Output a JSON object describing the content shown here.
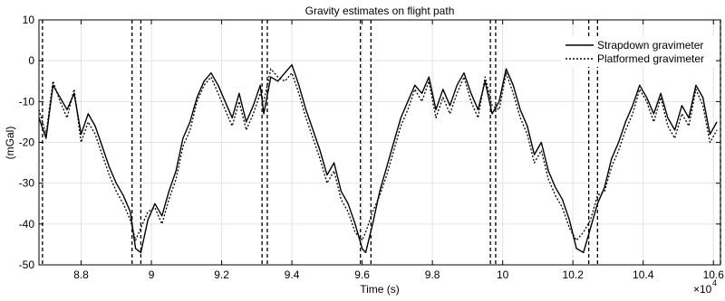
{
  "chart_data": {
    "type": "line",
    "title": "Gravity estimates on flight path",
    "xlabel": "Time (s)",
    "ylabel": "(mGal)",
    "x_exponent_label": "×10",
    "x_exponent_power": "4",
    "xlim": [
      8.68,
      10.62
    ],
    "ylim": [
      -50,
      10
    ],
    "x_ticks": [
      8.8,
      9,
      9.2,
      9.4,
      9.6,
      9.8,
      10,
      10.2,
      10.4,
      10.6
    ],
    "x_tick_labels": [
      "8.8",
      "9",
      "9.2",
      "9.4",
      "9.6",
      "9.8",
      "10",
      "10.2",
      "10.4",
      "10.6"
    ],
    "y_ticks": [
      -50,
      -40,
      -30,
      -20,
      -10,
      0,
      10
    ],
    "y_tick_labels": [
      "-50",
      "-40",
      "-30",
      "-20",
      "-10",
      "0",
      "10"
    ],
    "grid": true,
    "legend_position": "top-right",
    "vertical_markers": [
      8.69,
      8.945,
      8.97,
      9.315,
      9.33,
      9.595,
      9.625,
      9.965,
      9.98,
      10.245,
      10.27,
      10.62
    ],
    "series": [
      {
        "name": "Strapdown gravimeter",
        "style": "solid",
        "x": [
          8.68,
          8.7,
          8.72,
          8.74,
          8.76,
          8.78,
          8.8,
          8.82,
          8.84,
          8.86,
          8.88,
          8.9,
          8.92,
          8.94,
          8.955,
          8.97,
          8.99,
          9.01,
          9.03,
          9.05,
          9.07,
          9.09,
          9.11,
          9.13,
          9.15,
          9.17,
          9.19,
          9.21,
          9.23,
          9.25,
          9.27,
          9.29,
          9.31,
          9.32,
          9.34,
          9.36,
          9.38,
          9.4,
          9.42,
          9.44,
          9.46,
          9.48,
          9.5,
          9.52,
          9.54,
          9.56,
          9.58,
          9.6,
          9.61,
          9.63,
          9.65,
          9.67,
          9.69,
          9.71,
          9.73,
          9.75,
          9.77,
          9.79,
          9.81,
          9.83,
          9.85,
          9.87,
          9.89,
          9.91,
          9.93,
          9.95,
          9.97,
          9.99,
          10.01,
          10.03,
          10.05,
          10.07,
          10.09,
          10.11,
          10.13,
          10.15,
          10.17,
          10.19,
          10.21,
          10.23,
          10.25,
          10.27,
          10.29,
          10.31,
          10.33,
          10.35,
          10.37,
          10.39,
          10.41,
          10.43,
          10.45,
          10.47,
          10.49,
          10.51,
          10.53,
          10.55,
          10.57,
          10.59,
          10.61
        ],
        "y": [
          -14,
          -19,
          -6,
          -9,
          -12,
          -8,
          -18,
          -13,
          -16,
          -21,
          -26,
          -30,
          -33,
          -37,
          -46,
          -47,
          -39,
          -35,
          -38,
          -32,
          -27,
          -19,
          -15,
          -9,
          -5,
          -3,
          -6,
          -10,
          -14,
          -8,
          -15,
          -11,
          -6,
          -13,
          -4,
          -5,
          -3,
          -1,
          -6,
          -12,
          -17,
          -22,
          -28,
          -25,
          -32,
          -35,
          -40,
          -46,
          -47,
          -40,
          -32,
          -26,
          -20,
          -14,
          -10,
          -6,
          -8,
          -4,
          -12,
          -7,
          -11,
          -6,
          -3,
          -8,
          -12,
          -5,
          -13,
          -10,
          -2,
          -6,
          -12,
          -16,
          -23,
          -20,
          -27,
          -31,
          -34,
          -39,
          -46,
          -47,
          -41,
          -35,
          -31,
          -24,
          -20,
          -15,
          -11,
          -6,
          -9,
          -13,
          -8,
          -14,
          -17,
          -11,
          -14,
          -6,
          -9,
          -18,
          -15
        ]
      },
      {
        "name": "Platformed gravimeter",
        "style": "dotted",
        "x": [
          8.68,
          8.7,
          8.72,
          8.74,
          8.76,
          8.78,
          8.8,
          8.82,
          8.84,
          8.86,
          8.88,
          8.9,
          8.92,
          8.94,
          8.955,
          8.97,
          8.99,
          9.01,
          9.03,
          9.05,
          9.07,
          9.09,
          9.11,
          9.13,
          9.15,
          9.17,
          9.19,
          9.21,
          9.23,
          9.25,
          9.27,
          9.29,
          9.31,
          9.32,
          9.34,
          9.36,
          9.38,
          9.4,
          9.42,
          9.44,
          9.46,
          9.48,
          9.5,
          9.52,
          9.54,
          9.56,
          9.58,
          9.6,
          9.61,
          9.63,
          9.65,
          9.67,
          9.69,
          9.71,
          9.73,
          9.75,
          9.77,
          9.79,
          9.81,
          9.83,
          9.85,
          9.87,
          9.89,
          9.91,
          9.93,
          9.95,
          9.97,
          9.99,
          10.01,
          10.03,
          10.05,
          10.07,
          10.09,
          10.11,
          10.13,
          10.15,
          10.17,
          10.19,
          10.21,
          10.23,
          10.25,
          10.27,
          10.29,
          10.31,
          10.33,
          10.35,
          10.37,
          10.39,
          10.41,
          10.43,
          10.45,
          10.47,
          10.49,
          10.51,
          10.53,
          10.55,
          10.57,
          10.59,
          10.61
        ],
        "y": [
          -12,
          -18,
          -5,
          -10,
          -14,
          -7,
          -20,
          -15,
          -18,
          -23,
          -28,
          -32,
          -35,
          -39,
          -44,
          -41,
          -37,
          -36,
          -40,
          -34,
          -29,
          -21,
          -17,
          -10,
          -6,
          -4,
          -8,
          -12,
          -16,
          -10,
          -17,
          -13,
          -8,
          -10,
          -2,
          -4,
          -5,
          -3,
          -8,
          -14,
          -19,
          -24,
          -30,
          -27,
          -34,
          -37,
          -42,
          -44,
          -42,
          -37,
          -33,
          -28,
          -22,
          -16,
          -12,
          -7,
          -10,
          -5,
          -14,
          -9,
          -13,
          -8,
          -4,
          -10,
          -14,
          -4,
          -11,
          -12,
          -3,
          -8,
          -14,
          -18,
          -25,
          -22,
          -29,
          -33,
          -36,
          -41,
          -44,
          -42,
          -39,
          -33,
          -32,
          -26,
          -22,
          -17,
          -13,
          -7,
          -10,
          -15,
          -9,
          -16,
          -19,
          -13,
          -16,
          -7,
          -11,
          -20,
          -17
        ]
      }
    ]
  }
}
